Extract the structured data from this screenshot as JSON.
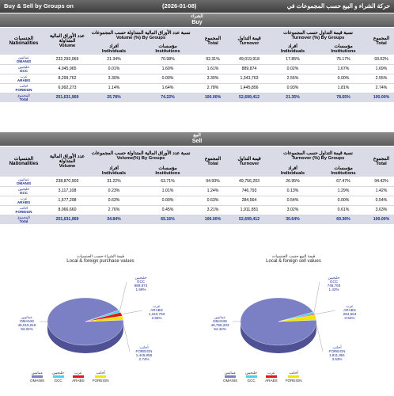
{
  "title": {
    "left": "Buy & Sell by Groups on",
    "date": "(2026-01-08)",
    "right": "حركة الشراء و البيع حسب المجموعات في"
  },
  "buy": {
    "header_ar": "الشراء",
    "header_en": "Buy",
    "col_nat_ar": "الجنسيات",
    "col_nat_en": "Nationalities",
    "col_vol_ar": "عدد الأوراق المالية المتداولة",
    "col_vol_en": "Volume",
    "col_volpct_ar": "نسبة عدد الأوراق المالية المتداولة حسب المجموعات",
    "col_volpct_en": "Volume (%) By Groups",
    "col_ind_ar": "أفراد",
    "col_ind_en": "Individuals",
    "col_inst_ar": "مؤسسات",
    "col_inst_en": "Institutions",
    "col_total_ar": "المجموع",
    "col_total_en": "Total",
    "col_turn_ar": "قيمة التداول",
    "col_turn_en": "Turnover",
    "col_turnpct_ar": "نسبة قيمة التداول حسب المجموعات",
    "col_turnpct_en": "Turnover (%) By Groups",
    "rows": [
      {
        "ar": "عمانيين",
        "en": "OMANIS",
        "vol": "232,293,969",
        "vi": "21.34%",
        "vn": "70.98%",
        "vt": "92.31%",
        "turn": "49,019,918",
        "ti": "17.85%",
        "tn": "75.17%",
        "tt": "93.02%"
      },
      {
        "ar": "خليجيين",
        "en": "GCC",
        "vol": "4,045,965",
        "vi": "0.01%",
        "vn": "1.60%",
        "vt": "1.61%",
        "turn": "889,874",
        "ti": "0.02%",
        "tn": "1.67%",
        "tt": "1.69%"
      },
      {
        "ar": "عرب",
        "en": "ARABS",
        "vol": "8,299,762",
        "vi": "3.30%",
        "vn": "0.00%",
        "vt": "3.30%",
        "turn": "1,343,763",
        "ti": "2.55%",
        "tn": "0.00%",
        "tt": "2.55%"
      },
      {
        "ar": "أجانب",
        "en": "FOREIGN",
        "vol": "6,992,273",
        "vi": "1.14%",
        "vn": "1.64%",
        "vt": "2.78%",
        "turn": "1,445,856",
        "ti": "0.93%",
        "tn": "1.81%",
        "tt": "2.74%"
      }
    ],
    "total": {
      "ar": "المجموع",
      "en": "Total",
      "vol": "251,631,969",
      "vi": "25.78%",
      "vn": "74.22%",
      "vt": "100.00%",
      "turn": "52,699,412",
      "ti": "21.35%",
      "tn": "78.65%",
      "tt": "100.00%"
    }
  },
  "sell": {
    "header_ar": "البيع",
    "header_en": "Sell",
    "col_nat_ar": "الجنسيات",
    "col_nat_en": "Nationalities",
    "col_vol_ar": "عدد الأوراق المالية المتداولة",
    "col_vol_en": "Volume",
    "col_volpct_ar": "نسبة عدد الأوراق المالية المتداولة حسب المجموعات",
    "col_volpct_en": "Volume(%) By Groups",
    "col_ind_ar": "أفراد",
    "col_ind_en": "Individuals",
    "col_inst_ar": "مؤسسات",
    "col_inst_en": "Institutions",
    "col_total_ar": "المجموع",
    "col_total_en": "Total",
    "col_turn_ar": "قيمة التداول",
    "col_turn_en": "Turnover",
    "col_turnpct_ar": "نسبة قيمة التداول حسب المجموعات",
    "col_turnpct_en": "Turnover (%) By Groups",
    "rows": [
      {
        "ar": "عمانيين",
        "en": "OMANIS",
        "vol": "238,870,903",
        "vi": "31.22%",
        "vn": "63.71%",
        "vt": "94.93%",
        "turn": "49,756,203",
        "ti": "26.95%",
        "tn": "67.47%",
        "tt": "94.42%"
      },
      {
        "ar": "خليجيين",
        "en": "GCC",
        "vol": "3,117,108",
        "vi": "0.23%",
        "vn": "1.01%",
        "vt": "1.24%",
        "turn": "746,793",
        "ti": "0.13%",
        "tn": "1.29%",
        "tt": "1.42%"
      },
      {
        "ar": "عرب",
        "en": "ARABS",
        "vol": "1,577,298",
        "vi": "0.63%",
        "vn": "0.00%",
        "vt": "0.63%",
        "turn": "284,564",
        "ti": "0.54%",
        "tn": "0.00%",
        "tt": "0.54%"
      },
      {
        "ar": "أجانب",
        "en": "FOREIGN",
        "vol": "8,066,660",
        "vi": "2.76%",
        "vn": "0.45%",
        "vt": "3.21%",
        "turn": "1,911,851",
        "ti": "3.02%",
        "tn": "0.61%",
        "tt": "3.63%"
      }
    ],
    "total": {
      "ar": "المجموع",
      "en": "Total",
      "vol": "251,631,969",
      "vi": "34.84%",
      "vn": "65.16%",
      "vt": "100.00%",
      "turn": "52,699,412",
      "ti": "30.64%",
      "tn": "69.36%",
      "tt": "100.00%"
    }
  },
  "colors": {
    "omanis": "#7b7fc4",
    "gcc": "#4fd0f0",
    "arabs": "#e01818",
    "foreign": "#f2e600"
  },
  "chart_data": [
    {
      "type": "pie",
      "title": "Local & foreign purchase values",
      "title_ar": "قيمة الشراء حسب الجنسيات",
      "categories": [
        "OMANIS",
        "GCC",
        "ARABS",
        "FOREIGN"
      ],
      "categories_ar": [
        "عمانيين",
        "خليجيين",
        "عرب",
        "أجانب"
      ],
      "values": [
        49019918,
        889874,
        1343763,
        1445856
      ],
      "value_labels": [
        "49,019,918",
        "889,874",
        "1,343,763",
        "1,445,856"
      ],
      "pct_labels": [
        "93.02%",
        "1.69%",
        "2.55%",
        "2.74%"
      ],
      "legend": "bottom"
    },
    {
      "type": "pie",
      "title": "Local & foreign sell values",
      "title_ar": "قيمة البيع حسب الجنسيات",
      "categories": [
        "OMANIS",
        "GCC",
        "ARABS",
        "FOREIGN"
      ],
      "categories_ar": [
        "عمانيين",
        "خليجيين",
        "عرب",
        "أجانب"
      ],
      "values": [
        49756203,
        746793,
        284564,
        1911851
      ],
      "value_labels": [
        "49,756,203",
        "746,793",
        "284,564",
        "1,911,851"
      ],
      "pct_labels": [
        "94.42%",
        "1.42%",
        "0.54%",
        "3.63%"
      ],
      "legend": "bottom"
    }
  ]
}
